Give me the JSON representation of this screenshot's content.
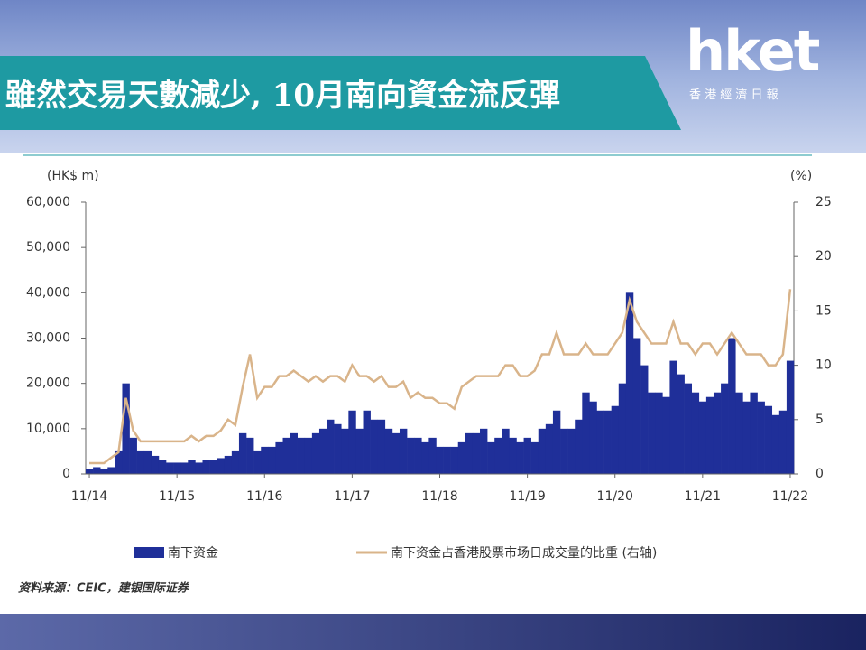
{
  "header": {
    "title": "雖然交易天數減少, 10月南向資金流反彈",
    "logo": "hket",
    "logo_sub": "香 港 經 濟 日 報"
  },
  "chart_data": {
    "type": "bar-line",
    "y_unit": "(HK$ m)",
    "y2_unit": "(%)",
    "source": "资料来源：CEIC，建银国际证券",
    "categories": [
      "11/14",
      null,
      null,
      null,
      null,
      null,
      null,
      null,
      null,
      null,
      null,
      null,
      "11/15",
      null,
      null,
      null,
      null,
      null,
      null,
      null,
      null,
      null,
      null,
      null,
      "11/16",
      null,
      null,
      null,
      null,
      null,
      null,
      null,
      null,
      null,
      null,
      null,
      "11/17",
      null,
      null,
      null,
      null,
      null,
      null,
      null,
      null,
      null,
      null,
      null,
      "11/18",
      null,
      null,
      null,
      null,
      null,
      null,
      null,
      null,
      null,
      null,
      null,
      "11/19",
      null,
      null,
      null,
      null,
      null,
      null,
      null,
      null,
      null,
      null,
      null,
      "11/20",
      null,
      null,
      null,
      null,
      null,
      null,
      null,
      null,
      null,
      null,
      null,
      "11/21",
      null,
      null,
      null,
      null,
      null,
      null,
      null,
      null,
      null,
      null,
      null,
      "11/22"
    ],
    "series": [
      {
        "name": "南下资金",
        "color": "#1f2f99",
        "type": "bar",
        "values": [
          1000,
          1500,
          1200,
          1500,
          5000,
          20000,
          8000,
          5000,
          5000,
          4000,
          3000,
          2500,
          2500,
          2500,
          3000,
          2500,
          3000,
          3000,
          3500,
          4000,
          5000,
          9000,
          8000,
          5000,
          6000,
          6000,
          7000,
          8000,
          9000,
          8000,
          8000,
          9000,
          10000,
          12000,
          11000,
          10000,
          14000,
          10000,
          14000,
          12000,
          12000,
          10000,
          9000,
          10000,
          8000,
          8000,
          7000,
          8000,
          6000,
          6000,
          6000,
          7000,
          9000,
          9000,
          10000,
          7000,
          8000,
          10000,
          8000,
          7000,
          8000,
          7000,
          10000,
          11000,
          14000,
          10000,
          10000,
          12000,
          18000,
          16000,
          14000,
          14000,
          15000,
          20000,
          40000,
          30000,
          24000,
          18000,
          18000,
          17000,
          25000,
          22000,
          20000,
          18000,
          16000,
          17000,
          18000,
          20000,
          30000,
          18000,
          16000,
          18000,
          16000,
          15000,
          13000,
          14000,
          25000
        ]
      },
      {
        "name": "南下资金占香港股票市场日成交量的比重 (右轴)",
        "color": "#d9b48a",
        "type": "line",
        "axis": "y2",
        "values": [
          1,
          1,
          1,
          1.5,
          2,
          7,
          4,
          3,
          3,
          3,
          3,
          3,
          3,
          3,
          3.5,
          3,
          3.5,
          3.5,
          4,
          5,
          4.5,
          8,
          11,
          7,
          8,
          8,
          9,
          9,
          9.5,
          9,
          8.5,
          9,
          8.5,
          9,
          9,
          8.5,
          10,
          9,
          9,
          8.5,
          9,
          8,
          8,
          8.5,
          7,
          7.5,
          7,
          7,
          6.5,
          6.5,
          6,
          8,
          8.5,
          9,
          9,
          9,
          9,
          10,
          10,
          9,
          9,
          9.5,
          11,
          11,
          13,
          11,
          11,
          11,
          12,
          11,
          11,
          11,
          12,
          13,
          16,
          14,
          13,
          12,
          12,
          12,
          14,
          12,
          12,
          11,
          12,
          12,
          11,
          12,
          13,
          12,
          11,
          11,
          11,
          10,
          10,
          11,
          17
        ]
      }
    ],
    "ylim": [
      0,
      60000
    ],
    "yticks": [
      0,
      {
        "value": 10000,
        "label": "10,000"
      },
      {
        "value": 20000,
        "label": "20,000"
      },
      {
        "value": 30000,
        "label": "30,000"
      },
      {
        "value": 40000,
        "label": "40,000"
      },
      {
        "value": 50000,
        "label": "50,000"
      },
      {
        "value": 60000,
        "label": "60,000"
      }
    ],
    "y2lim": [
      0,
      25
    ],
    "y2ticks": [
      0,
      5,
      10,
      15,
      20,
      25
    ]
  }
}
